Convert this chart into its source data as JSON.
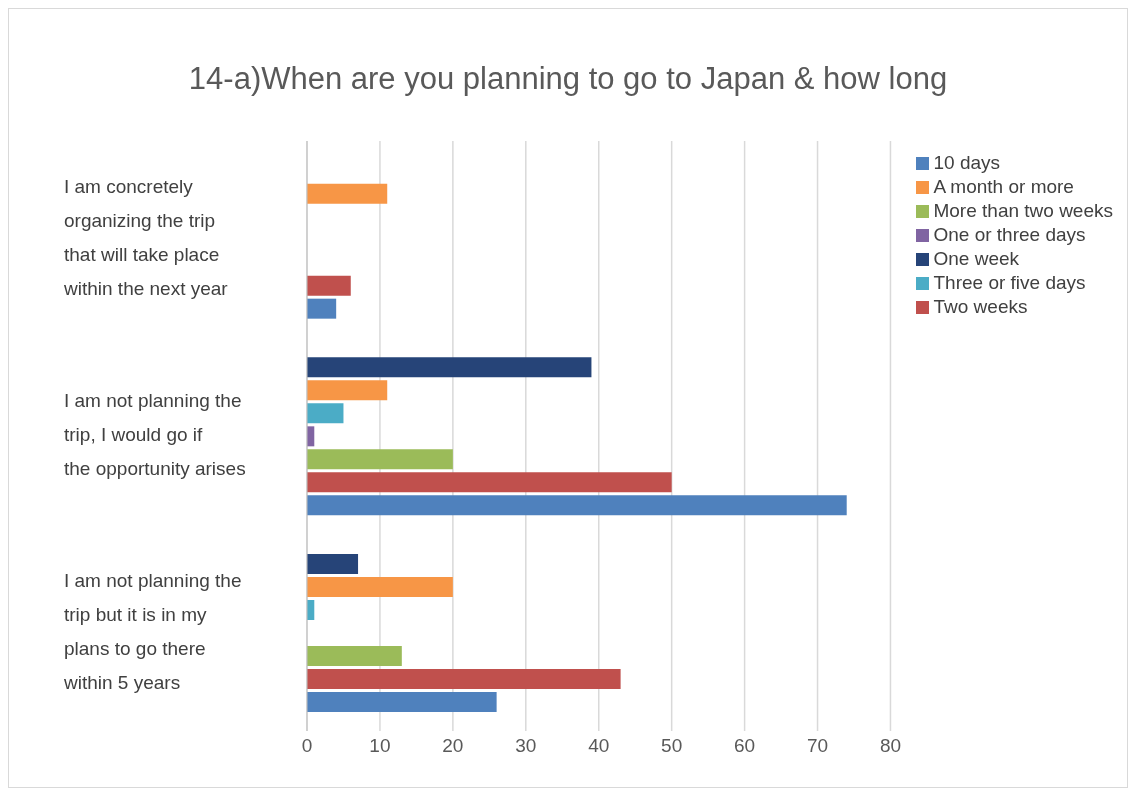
{
  "chart_data": {
    "type": "bar",
    "orientation": "horizontal",
    "title": "14-a)When are you planning to go to Japan & how long",
    "categories": [
      "I am concretely organizing the trip that will take place within the next year",
      "I am not planning the trip, I would go if the opportunity arises",
      "I am not planning the trip but it is in my plans to go there within 5 years"
    ],
    "series": [
      {
        "name": "One week",
        "color": "#264478",
        "values": [
          0,
          39,
          7
        ]
      },
      {
        "name": "A month or more",
        "color": "#f79646",
        "values": [
          11,
          11,
          20
        ]
      },
      {
        "name": "Three or five days",
        "color": "#4bacc6",
        "values": [
          0,
          5,
          1
        ]
      },
      {
        "name": "One or three days",
        "color": "#8064a2",
        "values": [
          0,
          1,
          0
        ]
      },
      {
        "name": "More than two weeks",
        "color": "#9bbb59",
        "values": [
          0,
          20,
          13
        ]
      },
      {
        "name": "Two weeks",
        "color": "#c0504d",
        "values": [
          6,
          50,
          43
        ]
      },
      {
        "name": "10 days",
        "color": "#4f81bd",
        "values": [
          4,
          74,
          26
        ]
      }
    ],
    "xlim": [
      0,
      80
    ],
    "xticks": [
      0,
      10,
      20,
      30,
      40,
      50,
      60,
      70,
      80
    ],
    "grid": "x",
    "legend": "top right"
  }
}
